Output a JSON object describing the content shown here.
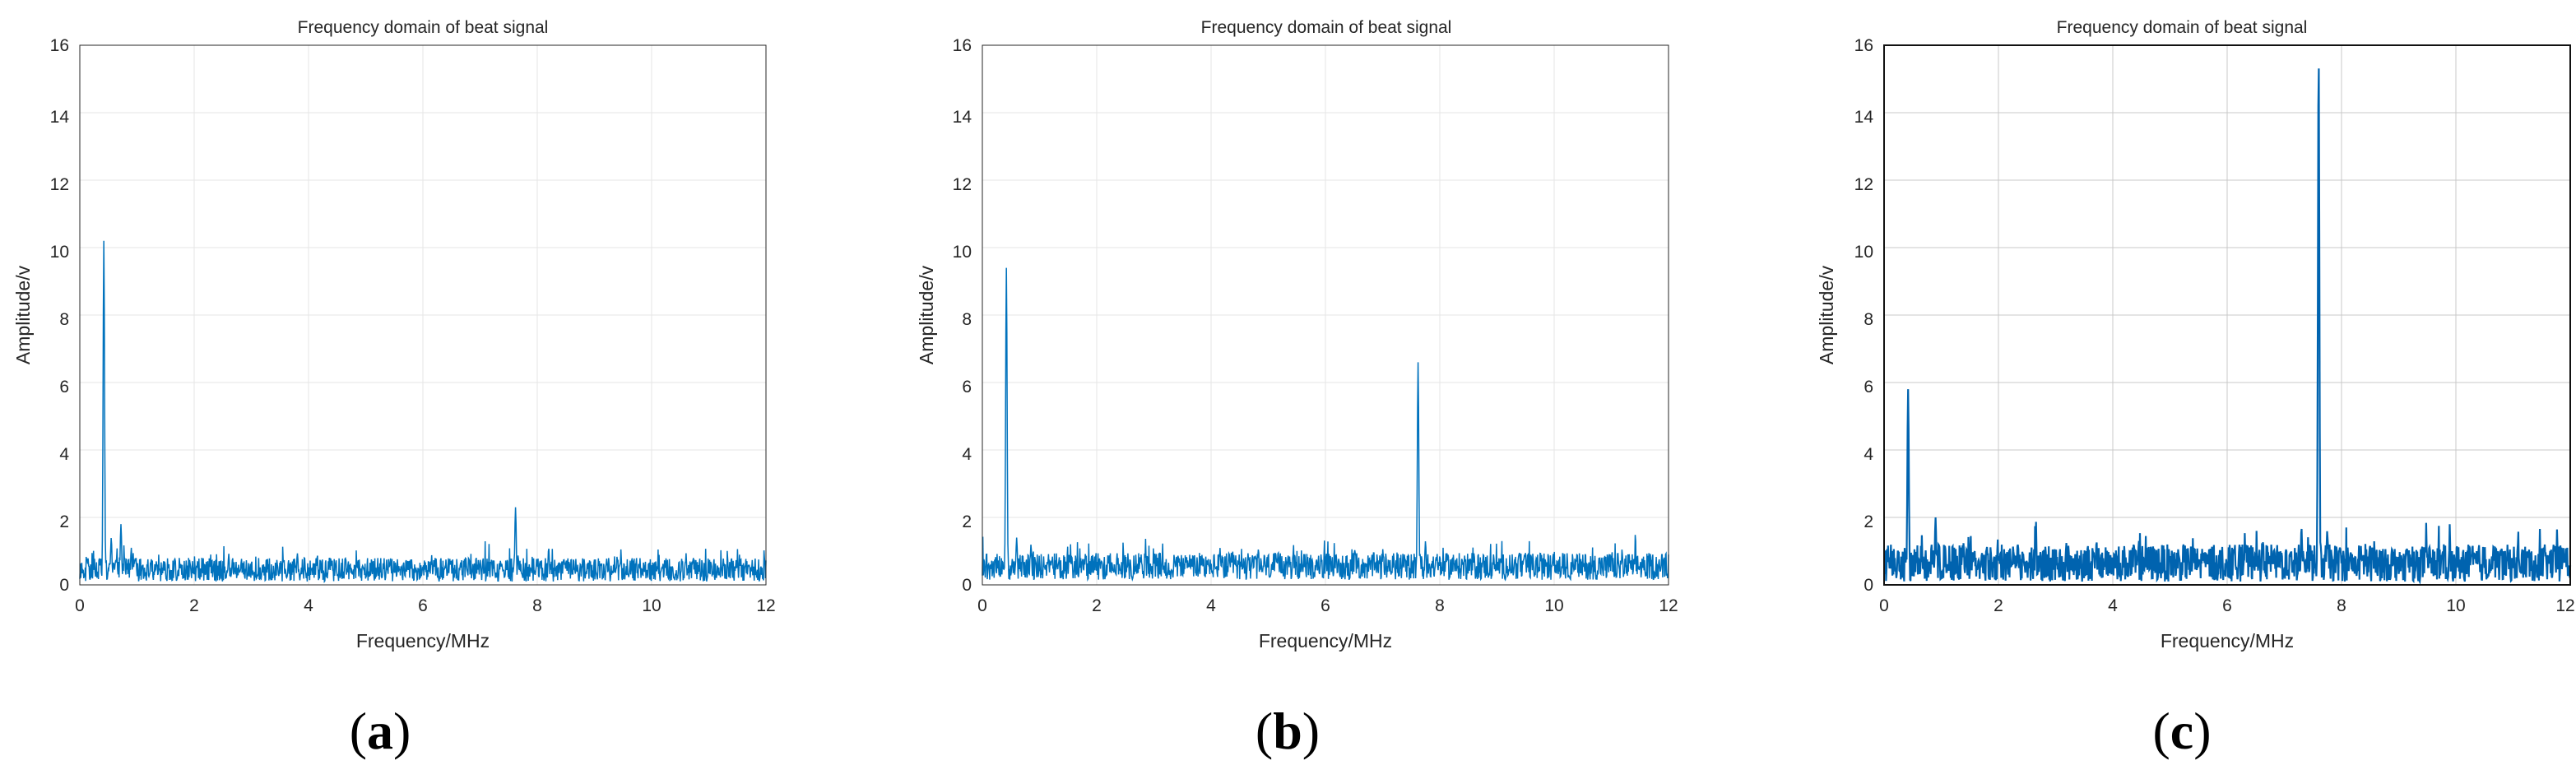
{
  "chart_data": [
    {
      "type": "line",
      "panel": "(a)",
      "title": "Frequency domain of beat signal",
      "xlabel": "Frequency/MHz",
      "ylabel": "Amplitude/v",
      "xlim": [
        0,
        12
      ],
      "ylim": [
        0,
        16
      ],
      "xticks": [
        0,
        2,
        4,
        6,
        8,
        10,
        12
      ],
      "yticks": [
        0,
        2,
        4,
        6,
        8,
        10,
        12,
        14,
        16
      ],
      "grid": true,
      "color": "#0072BD",
      "noise_floor": 0.45,
      "noise_spread": 0.35,
      "peaks": [
        {
          "x": 0.42,
          "y": 10.2
        },
        {
          "x": 0.55,
          "y": 1.4
        },
        {
          "x": 0.72,
          "y": 1.8
        },
        {
          "x": 0.9,
          "y": 1.1
        },
        {
          "x": 7.62,
          "y": 2.3
        },
        {
          "x": 8.2,
          "y": 1.1
        }
      ]
    },
    {
      "type": "line",
      "panel": "(b)",
      "title": "Frequency domain of beat signal",
      "xlabel": "Frequency/MHz",
      "ylabel": "Amplitude/v",
      "xlim": [
        0,
        12
      ],
      "ylim": [
        0,
        16
      ],
      "xticks": [
        0,
        2,
        4,
        6,
        8,
        10,
        12
      ],
      "yticks": [
        0,
        2,
        4,
        6,
        8,
        10,
        12,
        14,
        16
      ],
      "grid": true,
      "color": "#0072BD",
      "noise_floor": 0.55,
      "noise_spread": 0.4,
      "peaks": [
        {
          "x": 0.42,
          "y": 9.4
        },
        {
          "x": 0.6,
          "y": 1.4
        },
        {
          "x": 0.85,
          "y": 1.2
        },
        {
          "x": 7.62,
          "y": 6.6
        },
        {
          "x": 7.75,
          "y": 1.3
        }
      ]
    },
    {
      "type": "line",
      "panel": "(c)",
      "title": "Frequency domain of beat signal",
      "xlabel": "Frequency/MHz",
      "ylabel": "Amplitude/v",
      "xlim": [
        0,
        12
      ],
      "ylim": [
        0,
        16
      ],
      "xticks": [
        0,
        2,
        4,
        6,
        8,
        10,
        12
      ],
      "yticks": [
        0,
        2,
        4,
        6,
        8,
        10,
        12,
        14,
        16
      ],
      "grid": true,
      "color": "#0072BD",
      "noise_floor": 0.65,
      "noise_spread": 0.55,
      "peaks": [
        {
          "x": 0.42,
          "y": 5.8
        },
        {
          "x": 0.9,
          "y": 2.0
        },
        {
          "x": 7.3,
          "y": 1.7
        },
        {
          "x": 7.6,
          "y": 15.7
        },
        {
          "x": 7.75,
          "y": 1.6
        }
      ]
    }
  ]
}
